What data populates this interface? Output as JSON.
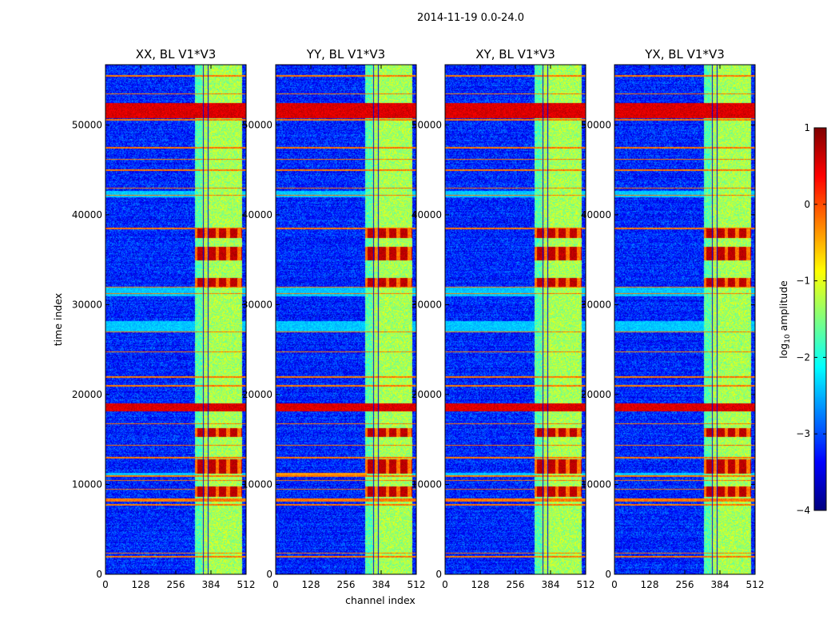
{
  "chart_data": {
    "type": "heatmap",
    "suptitle": "2014-11-19 0.0-24.0",
    "panels": [
      {
        "title": "XX, BL V1*V3",
        "variant": 0
      },
      {
        "title": "YY, BL V1*V3",
        "variant": 1
      },
      {
        "title": "XY, BL V1*V3",
        "variant": 2
      },
      {
        "title": "YX, BL V1*V3",
        "variant": 3
      }
    ],
    "xlabel": "channel index",
    "ylabel": "time index",
    "xlim": [
      0,
      512
    ],
    "ylim": [
      0,
      56700
    ],
    "xticks": [
      0,
      128,
      256,
      384,
      512
    ],
    "xtick_labels": [
      "0",
      "128",
      "256",
      "384",
      "512"
    ],
    "yticks": [
      0,
      10000,
      20000,
      30000,
      40000,
      50000
    ],
    "ytick_labels": [
      "0",
      "10000",
      "20000",
      "30000",
      "40000",
      "50000"
    ],
    "colorbar": {
      "label_prefix": "log",
      "label_sub": "10",
      "label_suffix": " amplitude",
      "range": [
        -4,
        1
      ],
      "ticks": [
        1,
        0,
        -1,
        -2,
        -3,
        -4
      ],
      "tick_labels": [
        "1",
        "0",
        "−1",
        "−2",
        "−3",
        "−4"
      ],
      "colormap": "jet"
    },
    "features": {
      "baseline_level": -3.2,
      "band_channels": [
        325,
        495
      ],
      "band_level": -1.3,
      "band_edge_channel": 350,
      "strong_bands_time": [
        [
          8700,
          9800
        ],
        [
          11200,
          12800
        ],
        [
          15300,
          16300
        ],
        [
          32000,
          33000
        ],
        [
          35000,
          36500
        ],
        [
          37500,
          38500
        ]
      ],
      "rfi_rows_time": [
        2000,
        2400,
        7800,
        8200,
        8400,
        9500,
        10500,
        11000,
        13000,
        14400,
        16800,
        18300,
        18600,
        18900,
        21000,
        22000,
        24800,
        27000,
        31300,
        32000,
        38500,
        42200,
        43000,
        45000,
        46200,
        47500,
        50600,
        51600,
        52000,
        52400,
        53500,
        55500
      ],
      "broadband_time": [
        [
          18200,
          19100
        ],
        [
          50800,
          52500
        ]
      ],
      "elevated_rows_time": [
        [
          10900,
          11300
        ],
        [
          27000,
          28200
        ],
        [
          31000,
          32000
        ],
        [
          42000,
          42700
        ]
      ],
      "elevated_panel_YY_time": [
        [
          10900,
          11300
        ]
      ],
      "vertical_lines_channels": [
        355,
        372
      ]
    }
  }
}
